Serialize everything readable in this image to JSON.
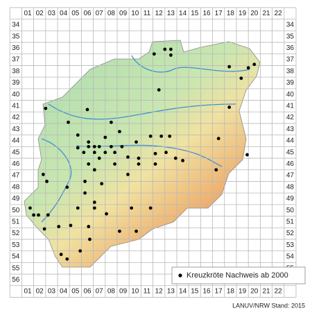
{
  "columns": [
    "01",
    "02",
    "03",
    "04",
    "05",
    "06",
    "07",
    "08",
    "09",
    "10",
    "11",
    "12",
    "13",
    "14",
    "15",
    "16",
    "17",
    "18",
    "19",
    "20",
    "21",
    "22"
  ],
  "rows": [
    "34",
    "35",
    "36",
    "37",
    "38",
    "39",
    "40",
    "41",
    "42",
    "43",
    "44",
    "45",
    "46",
    "47",
    "48",
    "49",
    "50",
    "51",
    "52",
    "53",
    "54",
    "55",
    "56"
  ],
  "legend": "Kreuzkröte Nachweis ab 2000",
  "credit": "LANUV/NRW Stand: 2015",
  "points": [
    {
      "col": 12.5,
      "row": 36.1
    },
    {
      "col": 13.0,
      "row": 36.1
    },
    {
      "col": 11.6,
      "row": 36.5
    },
    {
      "col": 13.0,
      "row": 36.6
    },
    {
      "col": 17.9,
      "row": 37.6
    },
    {
      "col": 19.5,
      "row": 37.7
    },
    {
      "col": 20.0,
      "row": 37.4
    },
    {
      "col": 18.9,
      "row": 38.6
    },
    {
      "col": 12.0,
      "row": 39.6
    },
    {
      "col": 17.9,
      "row": 41.1
    },
    {
      "col": 2.5,
      "row": 41.2
    },
    {
      "col": 6.0,
      "row": 41.3
    },
    {
      "col": 4.4,
      "row": 42.4
    },
    {
      "col": 8.0,
      "row": 42.4
    },
    {
      "col": 5.2,
      "row": 43.5
    },
    {
      "col": 6.1,
      "row": 44.1
    },
    {
      "col": 7.5,
      "row": 43.7
    },
    {
      "col": 8.7,
      "row": 43.2
    },
    {
      "col": 10.1,
      "row": 44.1
    },
    {
      "col": 11.3,
      "row": 43.6
    },
    {
      "col": 12.2,
      "row": 43.6
    },
    {
      "col": 12.9,
      "row": 43.6
    },
    {
      "col": 17.0,
      "row": 43.8
    },
    {
      "col": 5.2,
      "row": 44.6
    },
    {
      "col": 6.1,
      "row": 44.5
    },
    {
      "col": 6.6,
      "row": 44.5
    },
    {
      "col": 7.0,
      "row": 44.5
    },
    {
      "col": 8.0,
      "row": 44.5
    },
    {
      "col": 8.9,
      "row": 44.5
    },
    {
      "col": 5.7,
      "row": 45.0
    },
    {
      "col": 6.6,
      "row": 45.0
    },
    {
      "col": 7.5,
      "row": 45.0
    },
    {
      "col": 8.3,
      "row": 45.0
    },
    {
      "col": 9.4,
      "row": 45.4
    },
    {
      "col": 10.3,
      "row": 45.5
    },
    {
      "col": 11.7,
      "row": 45.1
    },
    {
      "col": 12.6,
      "row": 45.0
    },
    {
      "col": 13.4,
      "row": 45.5
    },
    {
      "col": 14.0,
      "row": 45.7
    },
    {
      "col": 7.0,
      "row": 45.5
    },
    {
      "col": 6.1,
      "row": 46.0
    },
    {
      "col": 8.3,
      "row": 46.0
    },
    {
      "col": 10.3,
      "row": 46.0
    },
    {
      "col": 11.7,
      "row": 46.0
    },
    {
      "col": 6.6,
      "row": 46.5
    },
    {
      "col": 9.4,
      "row": 46.9
    },
    {
      "col": 2.3,
      "row": 46.9
    },
    {
      "col": 2.6,
      "row": 47.5
    },
    {
      "col": 4.3,
      "row": 48.0
    },
    {
      "col": 5.8,
      "row": 47.5
    },
    {
      "col": 5.8,
      "row": 48.5
    },
    {
      "col": 7.2,
      "row": 47.7
    },
    {
      "col": 6.6,
      "row": 49.3
    },
    {
      "col": 7.6,
      "row": 50.3
    },
    {
      "col": 9.7,
      "row": 49.8
    },
    {
      "col": 11.3,
      "row": 49.8
    },
    {
      "col": 16.8,
      "row": 46.5
    },
    {
      "col": 19.4,
      "row": 45.2
    },
    {
      "col": 1.2,
      "row": 49.8
    },
    {
      "col": 1.5,
      "row": 50.4
    },
    {
      "col": 1.9,
      "row": 50.4
    },
    {
      "col": 2.7,
      "row": 50.4
    },
    {
      "col": 5.2,
      "row": 49.8
    },
    {
      "col": 6.6,
      "row": 49.8
    },
    {
      "col": 3.6,
      "row": 51.4
    },
    {
      "col": 4.6,
      "row": 51.3
    },
    {
      "col": 6.1,
      "row": 51.4
    },
    {
      "col": 6.2,
      "row": 52.5
    },
    {
      "col": 8.7,
      "row": 51.8
    },
    {
      "col": 10.1,
      "row": 51.8
    },
    {
      "col": 2.4,
      "row": 51.6
    },
    {
      "col": 5.4,
      "row": 53.5
    },
    {
      "col": 3.8,
      "row": 53.8
    },
    {
      "col": 4.3,
      "row": 54.2
    }
  ]
}
